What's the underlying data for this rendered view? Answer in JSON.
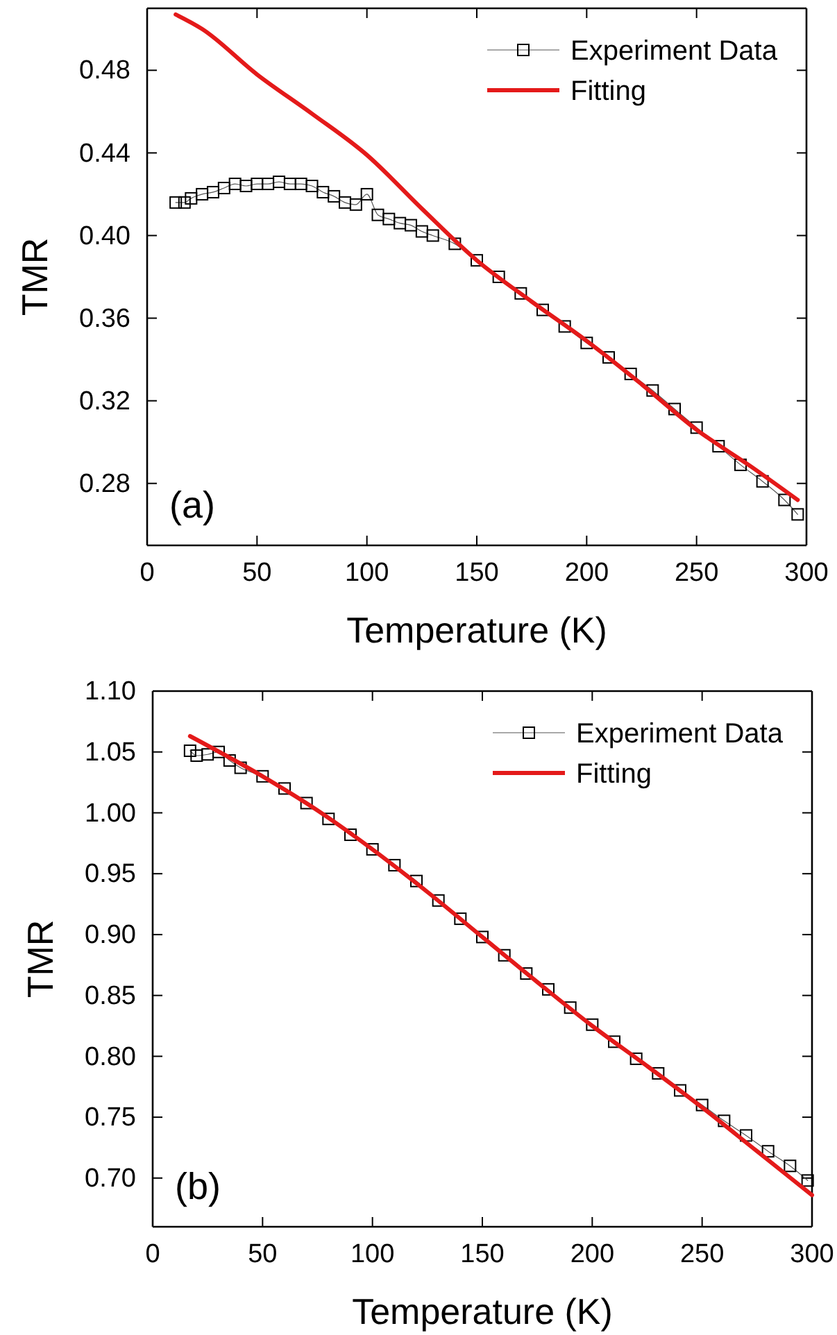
{
  "chart_data": [
    {
      "type": "line",
      "xlabel": "Temperature (K)",
      "ylabel": "TMR",
      "xlim": [
        0,
        300
      ],
      "xticks": [
        0,
        50,
        100,
        150,
        200,
        250,
        300
      ],
      "ylim": [
        0.25,
        0.51
      ],
      "yticks": [
        0.28,
        0.32,
        0.36,
        {
          "value": 0.4,
          "label": "0.40"
        },
        0.44,
        0.48
      ],
      "legend": "top right",
      "annotations": [
        "(a)"
      ],
      "series": [
        {
          "name": "Experiment Data",
          "color": "#000000",
          "marker": "square",
          "x": [
            13,
            17,
            20,
            25,
            30,
            35,
            40,
            45,
            50,
            55,
            60,
            65,
            70,
            75,
            80,
            85,
            90,
            95,
            100,
            105,
            110,
            115,
            120,
            125,
            130,
            140,
            150,
            160,
            170,
            180,
            190,
            200,
            210,
            220,
            230,
            240,
            250,
            260,
            270,
            280,
            290,
            296
          ],
          "values": [
            0.416,
            0.416,
            0.418,
            0.42,
            0.421,
            0.423,
            0.425,
            0.424,
            0.425,
            0.425,
            0.426,
            0.425,
            0.425,
            0.424,
            0.421,
            0.419,
            0.416,
            0.415,
            0.42,
            0.41,
            0.408,
            0.406,
            0.405,
            0.402,
            0.4,
            0.396,
            0.388,
            0.38,
            0.372,
            0.364,
            0.356,
            0.348,
            0.341,
            0.333,
            0.325,
            0.316,
            0.307,
            0.298,
            0.289,
            0.281,
            0.272,
            0.265
          ]
        },
        {
          "name": "Fitting",
          "color": "#e41a1a",
          "marker": "none",
          "x": [
            13,
            25,
            50,
            75,
            100,
            125,
            150,
            175,
            200,
            225,
            250,
            275,
            296
          ],
          "values": [
            0.507,
            0.5,
            0.478,
            0.459,
            0.439,
            0.413,
            0.388,
            0.368,
            0.349,
            0.328,
            0.306,
            0.288,
            0.272
          ]
        }
      ]
    },
    {
      "type": "line",
      "xlabel": "Temperature (K)",
      "ylabel": "TMR",
      "xlim": [
        0,
        300
      ],
      "xticks": [
        0,
        50,
        100,
        150,
        200,
        250,
        300
      ],
      "ylim": [
        0.66,
        1.1
      ],
      "yticks": [
        {
          "value": 0.7,
          "label": "0.70"
        },
        {
          "value": 0.75,
          "label": "0.75"
        },
        {
          "value": 0.8,
          "label": "0.80"
        },
        {
          "value": 0.85,
          "label": "0.85"
        },
        {
          "value": 0.9,
          "label": "0.90"
        },
        {
          "value": 0.95,
          "label": "0.95"
        },
        {
          "value": 1.0,
          "label": "1.00"
        },
        {
          "value": 1.05,
          "label": "1.05"
        },
        {
          "value": 1.1,
          "label": "1.10"
        }
      ],
      "legend": "top right",
      "annotations": [
        "(b)"
      ],
      "series": [
        {
          "name": "Experiment Data",
          "color": "#000000",
          "marker": "square",
          "x": [
            17,
            20,
            25,
            30,
            35,
            40,
            50,
            60,
            70,
            80,
            90,
            100,
            110,
            120,
            130,
            140,
            150,
            160,
            170,
            180,
            190,
            200,
            210,
            220,
            230,
            240,
            250,
            260,
            270,
            280,
            290,
            298
          ],
          "values": [
            1.051,
            1.047,
            1.048,
            1.05,
            1.043,
            1.037,
            1.03,
            1.02,
            1.008,
            0.995,
            0.982,
            0.97,
            0.957,
            0.944,
            0.928,
            0.913,
            0.898,
            0.883,
            0.868,
            0.855,
            0.84,
            0.826,
            0.812,
            0.798,
            0.786,
            0.772,
            0.76,
            0.747,
            0.735,
            0.722,
            0.71,
            0.698
          ]
        },
        {
          "name": "Fitting",
          "color": "#e41a1a",
          "marker": "none",
          "x": [
            17,
            50,
            75,
            100,
            125,
            150,
            175,
            200,
            225,
            250,
            275,
            300
          ],
          "values": [
            1.063,
            1.03,
            1.002,
            0.97,
            0.935,
            0.898,
            0.861,
            0.825,
            0.792,
            0.758,
            0.722,
            0.686
          ]
        }
      ]
    }
  ]
}
